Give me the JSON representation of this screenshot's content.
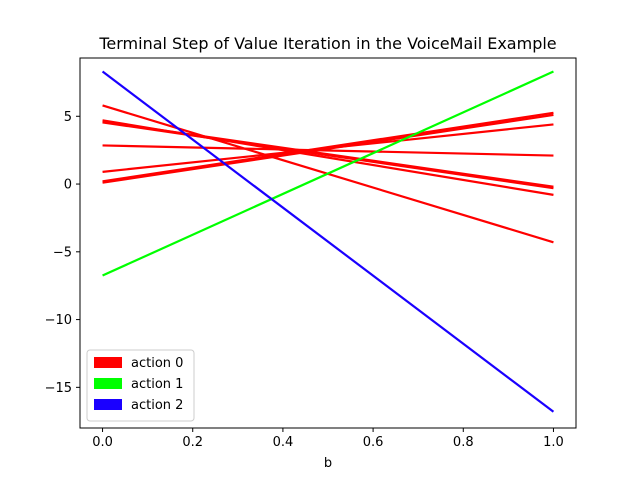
{
  "chart_data": {
    "type": "line",
    "title": "Terminal Step of Value Iteration in the VoiceMail Example",
    "xlabel": "b",
    "ylabel": "",
    "xlim": [
      -0.05,
      1.05
    ],
    "ylim": [
      -18.0,
      9.3
    ],
    "xticks": [
      0.0,
      0.2,
      0.4,
      0.6,
      0.8,
      1.0
    ],
    "xtick_labels": [
      "0.0",
      "0.2",
      "0.4",
      "0.6",
      "0.8",
      "1.0"
    ],
    "yticks": [
      5,
      0,
      -5,
      -10,
      -15
    ],
    "ytick_labels": [
      "5",
      "0",
      "−5",
      "−10",
      "−15"
    ],
    "grid": false,
    "legend_position": "lower-left",
    "legend": [
      {
        "label": "action 0",
        "color": "#ff0000"
      },
      {
        "label": "action 1",
        "color": "#00ff00"
      },
      {
        "label": "action 2",
        "color": "#1a00ff"
      }
    ],
    "series": [
      {
        "action": 0,
        "color": "#ff0000",
        "x": [
          0,
          1
        ],
        "y": [
          5.8,
          -4.3
        ]
      },
      {
        "action": 0,
        "color": "#ff0000",
        "x": [
          0,
          1
        ],
        "y": [
          4.7,
          -0.8
        ]
      },
      {
        "action": 0,
        "color": "#ff0000",
        "x": [
          0,
          1
        ],
        "y": [
          4.6,
          -0.2
        ]
      },
      {
        "action": 0,
        "color": "#ff0000",
        "x": [
          0,
          1
        ],
        "y": [
          4.55,
          -0.3
        ]
      },
      {
        "action": 0,
        "color": "#ff0000",
        "x": [
          0,
          1
        ],
        "y": [
          2.85,
          2.1
        ]
      },
      {
        "action": 0,
        "color": "#ff0000",
        "x": [
          0,
          1
        ],
        "y": [
          0.9,
          4.4
        ]
      },
      {
        "action": 0,
        "color": "#ff0000",
        "x": [
          0,
          1
        ],
        "y": [
          0.2,
          5.25
        ]
      },
      {
        "action": 0,
        "color": "#ff0000",
        "x": [
          0,
          1
        ],
        "y": [
          0.1,
          5.1
        ]
      },
      {
        "action": 1,
        "color": "#00ff00",
        "x": [
          0,
          1
        ],
        "y": [
          -6.75,
          8.3
        ]
      },
      {
        "action": 2,
        "color": "#1a00ff",
        "x": [
          0,
          1
        ],
        "y": [
          8.3,
          -16.8
        ]
      }
    ]
  }
}
